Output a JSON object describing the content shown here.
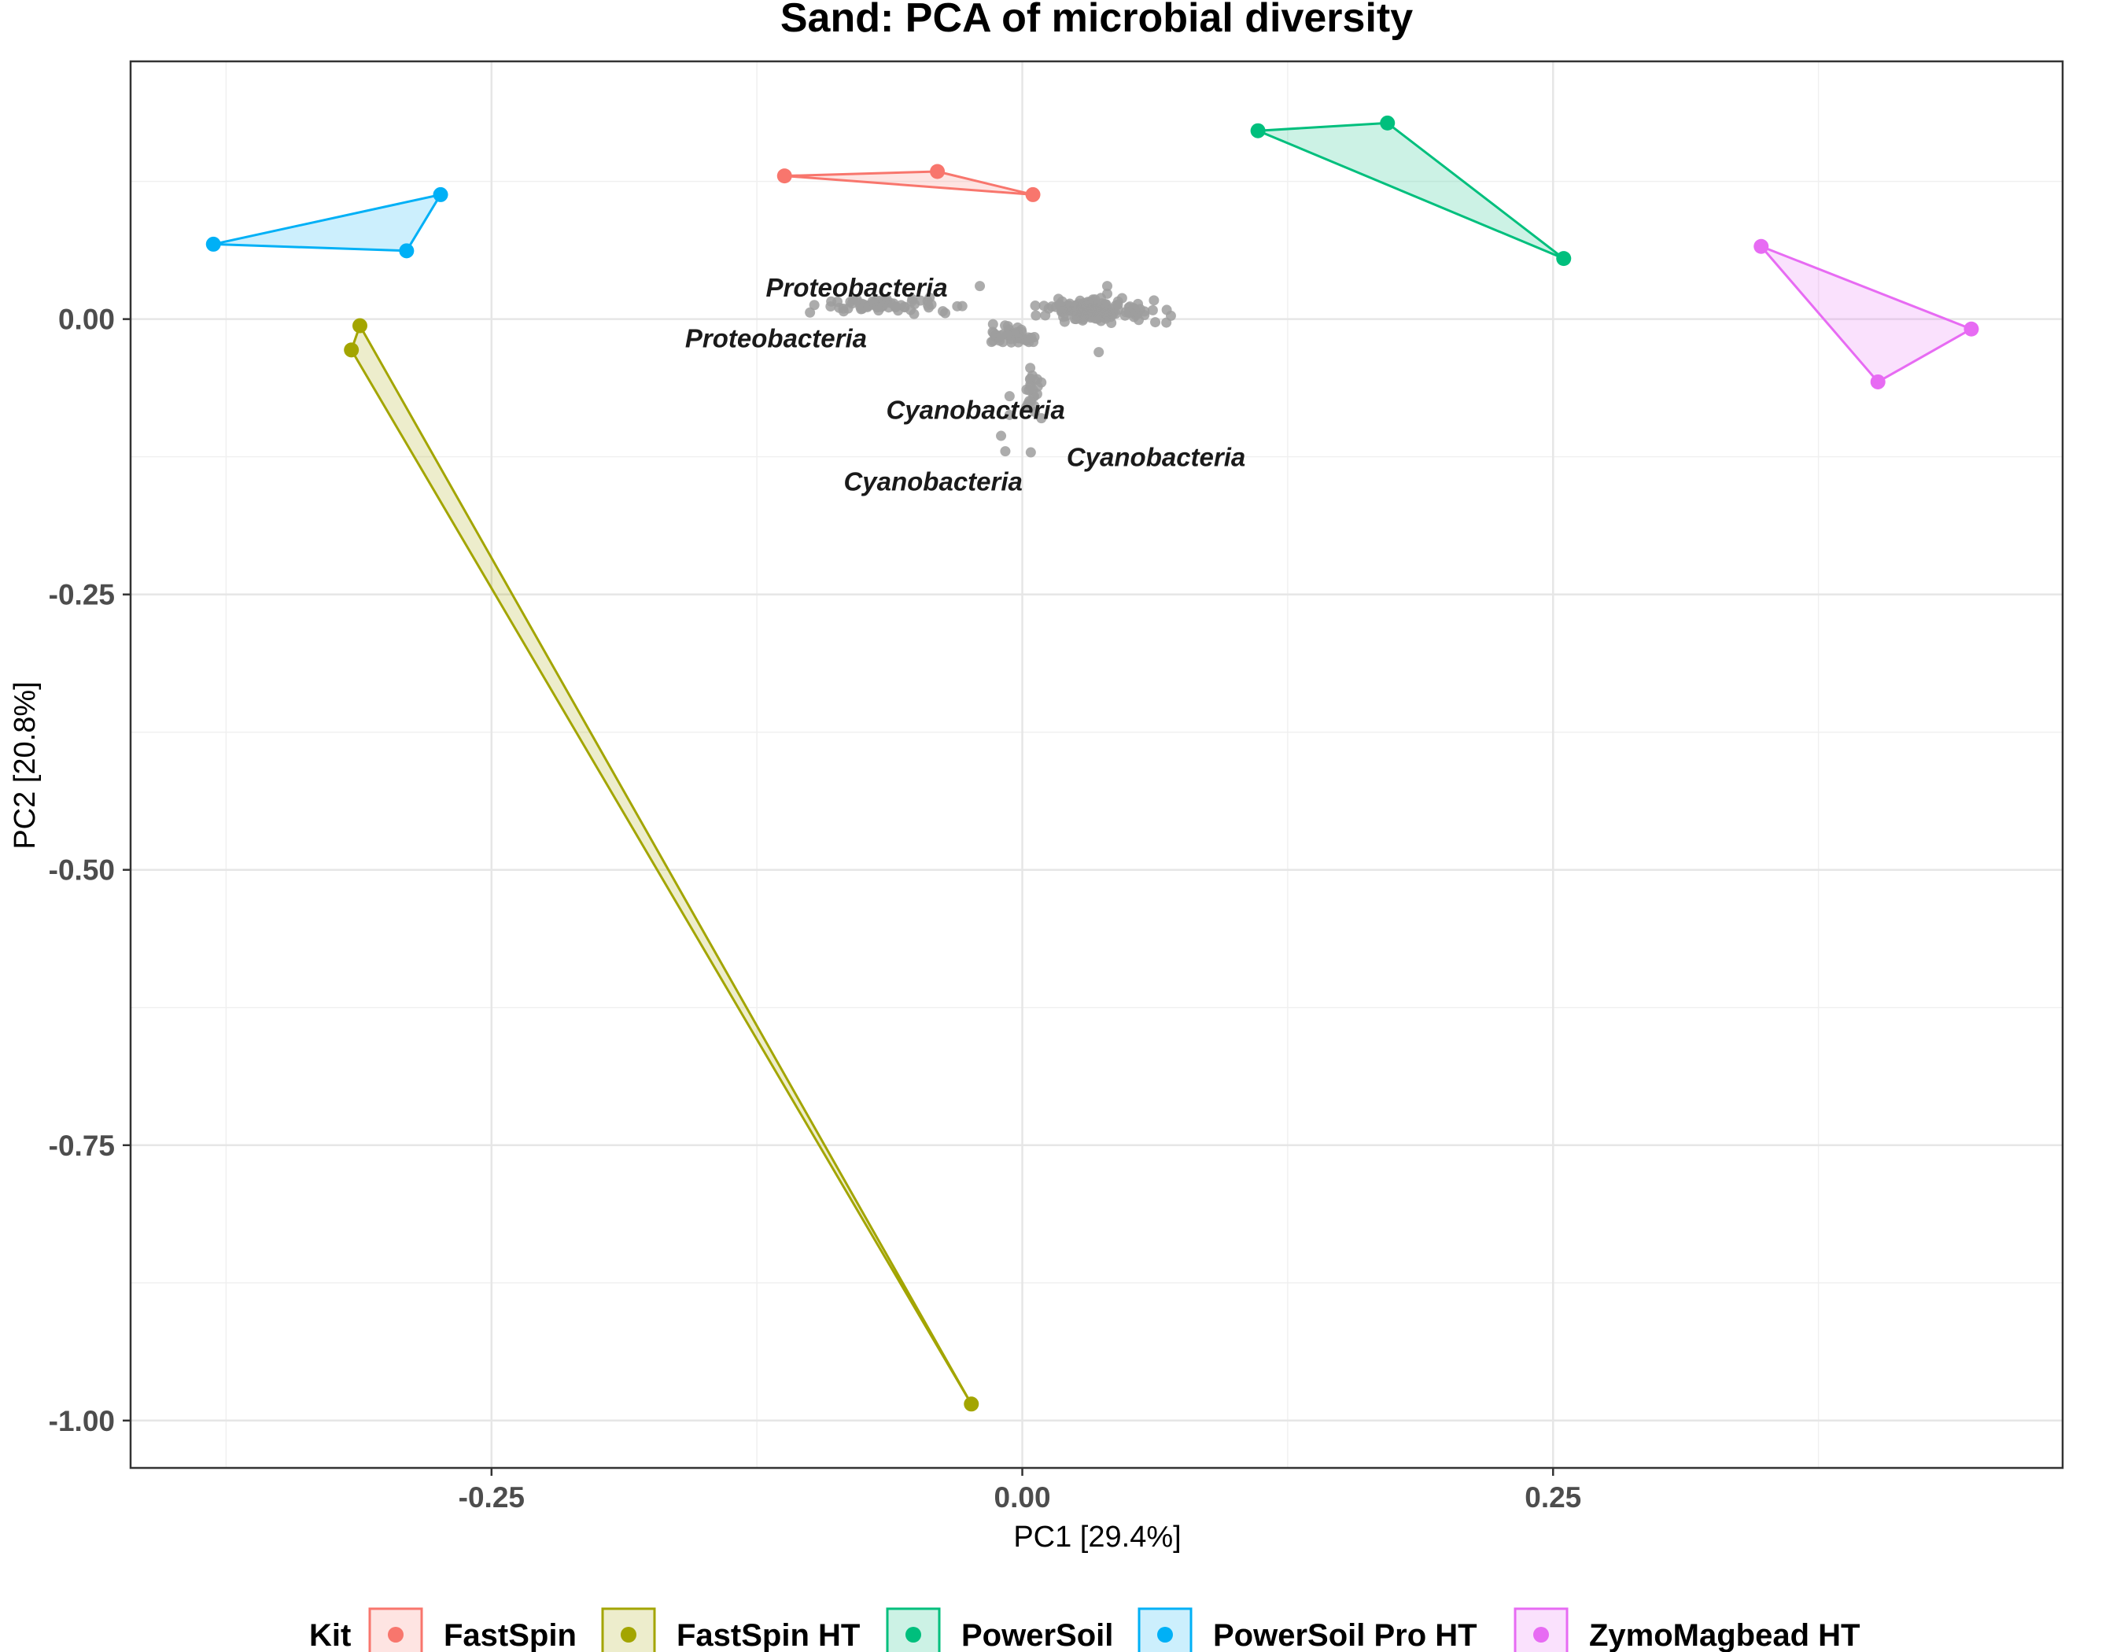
{
  "chart_data": {
    "type": "scatter",
    "title": "Sand: PCA of microbial diversity",
    "xlabel": "PC1 [29.4%]",
    "ylabel": "PC2 [20.8%]",
    "xlim": [
      -0.42,
      0.49
    ],
    "ylim": [
      -1.043,
      0.234
    ],
    "x_ticks": [
      {
        "value": -0.25,
        "label": "-0.25"
      },
      {
        "value": 0.0,
        "label": "0.00"
      },
      {
        "value": 0.25,
        "label": "0.25"
      }
    ],
    "y_ticks": [
      {
        "value": 0.0,
        "label": "0.00"
      },
      {
        "value": -0.25,
        "label": "-0.25"
      },
      {
        "value": -0.5,
        "label": "-0.50"
      },
      {
        "value": -0.75,
        "label": "-0.75"
      },
      {
        "value": -1.0,
        "label": "-1.00"
      }
    ],
    "grid": true,
    "legend": {
      "title": "Kit",
      "position": "bottom"
    },
    "series": [
      {
        "name": "FastSpin",
        "color": "#F8766D",
        "points": [
          [
            -0.112,
            0.13
          ],
          [
            -0.04,
            0.134
          ],
          [
            0.005,
            0.113
          ]
        ]
      },
      {
        "name": "FastSpin HT",
        "color": "#A3A500",
        "points": [
          [
            -0.312,
            -0.006
          ],
          [
            -0.316,
            -0.028
          ],
          [
            -0.024,
            -0.985
          ]
        ]
      },
      {
        "name": "PowerSoil",
        "color": "#00BF7D",
        "points": [
          [
            0.111,
            0.171
          ],
          [
            0.172,
            0.178
          ],
          [
            0.255,
            0.055
          ]
        ]
      },
      {
        "name": "PowerSoil Pro HT",
        "color": "#00B0F6",
        "points": [
          [
            -0.381,
            0.068
          ],
          [
            -0.29,
            0.062
          ],
          [
            -0.274,
            0.113
          ]
        ]
      },
      {
        "name": "ZymoMagbead HT",
        "color": "#E76BF3",
        "points": [
          [
            0.348,
            0.066
          ],
          [
            0.447,
            -0.009
          ],
          [
            0.403,
            -0.057
          ]
        ]
      }
    ],
    "taxa_points_color": "#9e9e9e",
    "taxa_labels": [
      {
        "text": "Proteobacteria",
        "x": -0.078,
        "y": 0.029
      },
      {
        "text": "Proteobacteria",
        "x": -0.116,
        "y": -0.017
      },
      {
        "text": "Cyanobacteria",
        "x": -0.022,
        "y": -0.082
      },
      {
        "text": "Cyanobacteria",
        "x": 0.063,
        "y": -0.125
      },
      {
        "text": "Cyanobacteria",
        "x": -0.042,
        "y": -0.147
      }
    ]
  }
}
